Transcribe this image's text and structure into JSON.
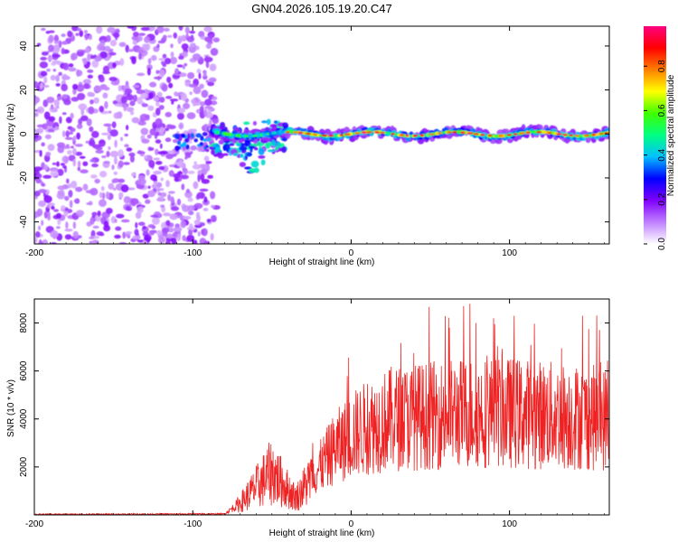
{
  "title": "GN04.2026.105.19.20.C47",
  "chart_data": [
    {
      "type": "heatmap",
      "xlabel": "Height of straight line (km)",
      "ylabel": "Frequency (Hz)",
      "xlim": [
        -200,
        163
      ],
      "ylim": [
        -50,
        49
      ],
      "xticks": [
        -200,
        -100,
        0,
        100
      ],
      "yticks": [
        -40,
        -20,
        0,
        20,
        40
      ],
      "colorbar": {
        "label": "Normalized spectral amplitude",
        "range": [
          0,
          0.98
        ],
        "ticks": [
          0.0,
          0.2,
          0.4,
          0.6,
          0.8
        ],
        "stops": [
          "#ffffff",
          "#c080ff",
          "#8000ff",
          "#0000ff",
          "#00c0ff",
          "#00ff80",
          "#40ff00",
          "#ffff00",
          "#ff8000",
          "#ff0000",
          "#ff0080"
        ]
      },
      "regions": [
        {
          "name": "noise",
          "x_range": [
            -200,
            -85
          ],
          "y_range": [
            -50,
            49
          ],
          "amplitude": 0.15
        },
        {
          "name": "onset",
          "x_range": [
            -88,
            -40
          ],
          "y_range": [
            -18,
            8
          ],
          "amplitude": 0.5
        },
        {
          "name": "signal-band",
          "x_range": [
            -40,
            163
          ],
          "y_center": 0,
          "amplitude": 0.9
        }
      ]
    },
    {
      "type": "line",
      "xlabel": "Height of straight line (km)",
      "ylabel": "SNR (10 * v/v)",
      "xlim": [
        -200,
        163
      ],
      "ylim": [
        0,
        9000
      ],
      "xticks": [
        -200,
        -100,
        0,
        100
      ],
      "yticks": [
        2000,
        4000,
        6000,
        8000
      ],
      "color": "#ee2222",
      "trend": [
        {
          "x": -200,
          "y": 20
        },
        {
          "x": -80,
          "y": 40
        },
        {
          "x": -70,
          "y": 500
        },
        {
          "x": -50,
          "y": 1800
        },
        {
          "x": -35,
          "y": 700
        },
        {
          "x": -22,
          "y": 1800
        },
        {
          "x": -10,
          "y": 2800
        },
        {
          "x": 5,
          "y": 3500
        },
        {
          "x": 25,
          "y": 4000
        },
        {
          "x": 60,
          "y": 4200
        },
        {
          "x": 90,
          "y": 4300
        },
        {
          "x": 163,
          "y": 4000
        }
      ],
      "peaks": [
        {
          "x": 75,
          "y": 8800
        },
        {
          "x": 103,
          "y": 8300
        },
        {
          "x": 90,
          "y": 8200
        },
        {
          "x": 62,
          "y": 7800
        },
        {
          "x": 163,
          "y": 7700
        }
      ]
    }
  ]
}
